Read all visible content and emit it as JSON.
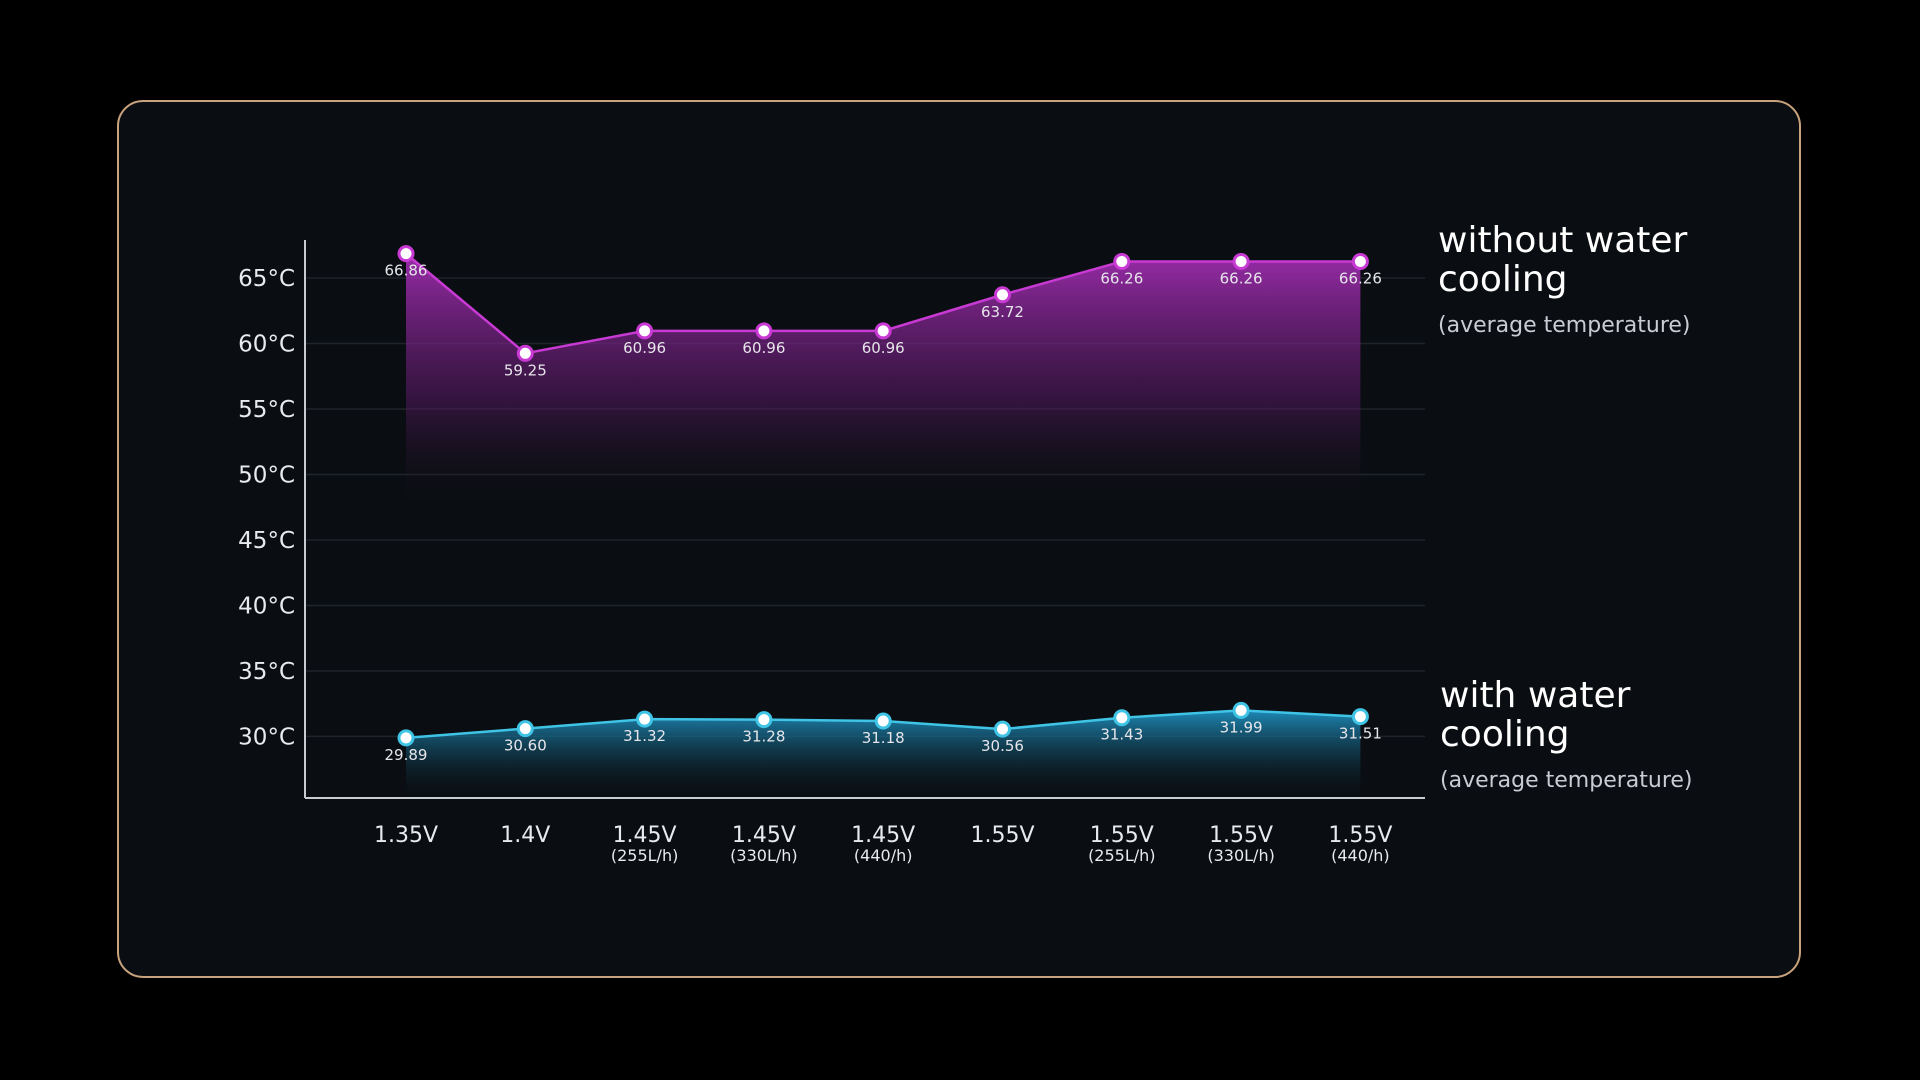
{
  "chart_data": {
    "type": "area",
    "categories": [
      {
        "label": "1.35V",
        "sub": ""
      },
      {
        "label": "1.4V",
        "sub": ""
      },
      {
        "label": "1.45V",
        "sub": "(255L/h)"
      },
      {
        "label": "1.45V",
        "sub": "(330L/h)"
      },
      {
        "label": "1.45V",
        "sub": "(440/h)"
      },
      {
        "label": "1.55V",
        "sub": ""
      },
      {
        "label": "1.55V",
        "sub": "(255L/h)"
      },
      {
        "label": "1.55V",
        "sub": "(330L/h)"
      },
      {
        "label": "1.55V",
        "sub": "(440/h)"
      }
    ],
    "y_ticks": [
      "65°C",
      "60°C",
      "55°C",
      "50°C",
      "45°C",
      "40°C",
      "35°C",
      "30°C"
    ],
    "y_tick_values": [
      65,
      60,
      55,
      50,
      45,
      40,
      35,
      30
    ],
    "ylim": [
      25.3,
      67.9
    ],
    "grid": true,
    "series": [
      {
        "name": "without water cooling",
        "subtitle": "(average temperature)",
        "values": [
          66.86,
          59.25,
          60.96,
          60.96,
          60.96,
          63.72,
          66.26,
          66.26,
          66.26
        ],
        "labels": [
          "66.86",
          "59.25",
          "60.96",
          "60.96",
          "60.96",
          "63.72",
          "66.26",
          "66.26",
          "66.26"
        ],
        "color": "#c93ad4",
        "fill_top": "#9a2aa6",
        "fill_bottom_value": 47
      },
      {
        "name": "with water cooling",
        "subtitle": "(average temperature)",
        "values": [
          29.89,
          30.6,
          31.32,
          31.28,
          31.18,
          30.56,
          31.43,
          31.99,
          31.51
        ],
        "labels": [
          "29.89",
          "30.60",
          "31.32",
          "31.28",
          "31.18",
          "30.56",
          "31.43",
          "31.99",
          "31.51"
        ],
        "color": "#3fc4e6",
        "fill_top": "#1f8fb8",
        "fill_bottom_value": 25.3
      }
    ],
    "legend": {
      "placement": "right",
      "entries": [
        {
          "line1": "without water",
          "line2": "cooling",
          "sub": "(average temperature)"
        },
        {
          "line1": "with water",
          "line2": "cooling",
          "sub": "(average temperature)"
        }
      ]
    },
    "colors": {
      "background": "#000000",
      "card": "#0a0e12",
      "card_border": "#c9a27e",
      "axis": "#c8cbd0",
      "grid": "#1f242a"
    }
  }
}
